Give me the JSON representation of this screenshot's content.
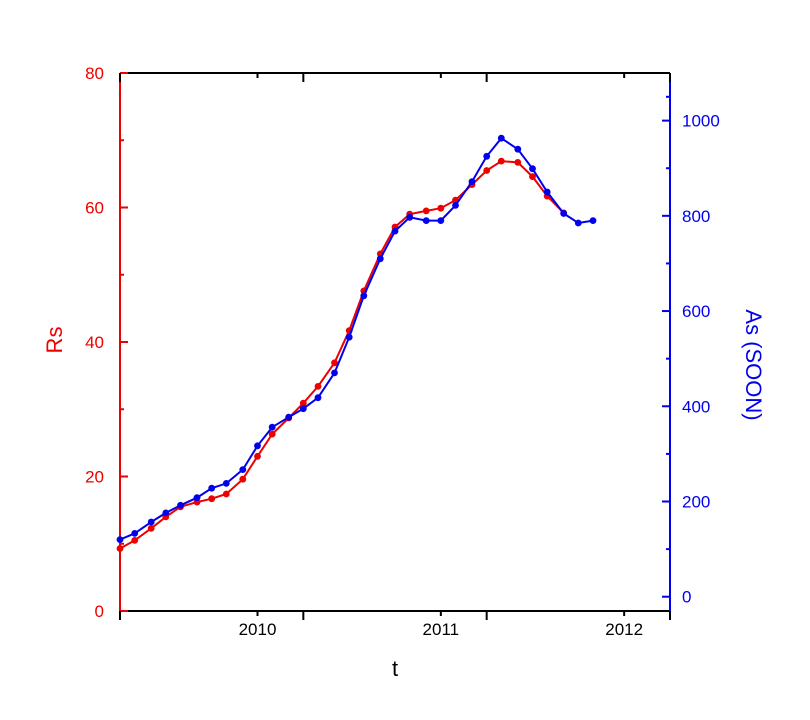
{
  "chart_data": {
    "type": "line",
    "xlabel": "t",
    "ylabel_left": "Rs",
    "ylabel_right": "As (SOON)",
    "xlim": [
      2009.25,
      2012.25
    ],
    "ylim_left": [
      0,
      80
    ],
    "ylim_right": [
      -30,
      1100
    ],
    "x_ticks": [
      2010,
      2011,
      2012
    ],
    "y_ticks_left": [
      0,
      20,
      40,
      60,
      80
    ],
    "y_ticks_right": [
      0,
      200,
      400,
      600,
      800,
      1000
    ],
    "grid": false,
    "series": [
      {
        "axis": "left",
        "color": "#ee0000",
        "x": [
          2009.25,
          2009.33,
          2009.42,
          2009.5,
          2009.58,
          2009.67,
          2009.75,
          2009.83,
          2009.92,
          2010.0,
          2010.08,
          2010.17,
          2010.25,
          2010.33,
          2010.42,
          2010.5,
          2010.58,
          2010.67,
          2010.75,
          2010.83,
          2010.92,
          2011.0,
          2011.08,
          2011.17,
          2011.25,
          2011.33,
          2011.42,
          2011.5,
          2011.58,
          2011.67,
          2011.75,
          2011.83
        ],
        "values": [
          9.3,
          10.5,
          12.3,
          14,
          15.5,
          16.2,
          16.7,
          17.4,
          19.6,
          23,
          26.3,
          28.7,
          30.9,
          33.4,
          36.9,
          41.7,
          47.6,
          53.1,
          57.1,
          59,
          59.5,
          59.9,
          61.1,
          63.4,
          65.5,
          66.9,
          66.7,
          64.6,
          61.7,
          59.2,
          null,
          null
        ]
      },
      {
        "axis": "right",
        "color": "#0000ee",
        "x": [
          2009.25,
          2009.33,
          2009.42,
          2009.5,
          2009.58,
          2009.67,
          2009.75,
          2009.83,
          2009.92,
          2010.0,
          2010.08,
          2010.17,
          2010.25,
          2010.33,
          2010.42,
          2010.5,
          2010.58,
          2010.67,
          2010.75,
          2010.83,
          2010.92,
          2011.0,
          2011.08,
          2011.17,
          2011.25,
          2011.33,
          2011.42,
          2011.5,
          2011.58,
          2011.67,
          2011.75,
          2011.83
        ],
        "values": [
          120,
          133,
          157,
          176,
          192,
          208,
          228,
          238,
          267,
          317,
          356,
          377,
          395,
          418,
          470,
          545,
          632,
          710,
          768,
          797,
          790,
          790,
          822,
          872,
          925,
          963,
          940,
          899,
          850,
          805,
          785,
          790
        ]
      }
    ]
  }
}
